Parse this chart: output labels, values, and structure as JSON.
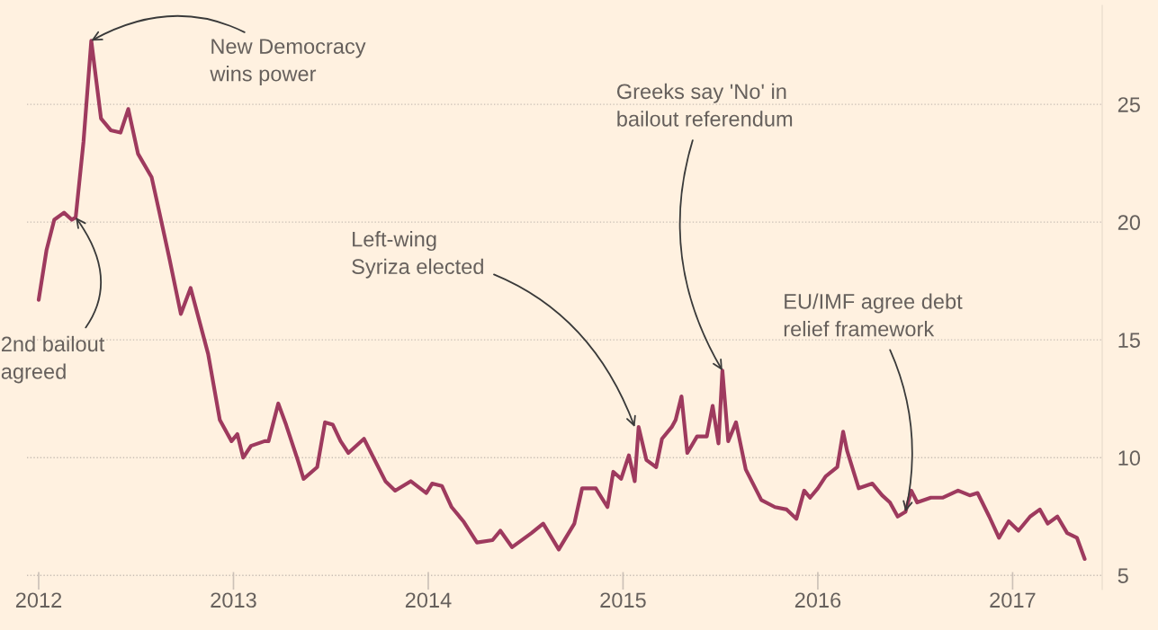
{
  "chart_data": {
    "type": "line",
    "x": [
      2012.0,
      2012.04,
      2012.08,
      2012.13,
      2012.17,
      2012.19,
      2012.23,
      2012.27,
      2012.32,
      2012.37,
      2012.42,
      2012.46,
      2012.51,
      2012.58,
      2012.62,
      2012.67,
      2012.73,
      2012.78,
      2012.87,
      2012.93,
      2012.99,
      2013.02,
      2013.05,
      2013.09,
      2013.16,
      2013.18,
      2013.23,
      2013.27,
      2013.33,
      2013.36,
      2013.43,
      2013.47,
      2013.51,
      2013.55,
      2013.59,
      2013.67,
      2013.78,
      2013.83,
      2013.91,
      2013.99,
      2014.02,
      2014.07,
      2014.12,
      2014.18,
      2014.25,
      2014.33,
      2014.37,
      2014.43,
      2014.53,
      2014.59,
      2014.67,
      2014.75,
      2014.79,
      2014.86,
      2014.92,
      2014.95,
      2014.99,
      2015.03,
      2015.06,
      2015.08,
      2015.12,
      2015.17,
      2015.2,
      2015.25,
      2015.27,
      2015.3,
      2015.33,
      2015.38,
      2015.43,
      2015.46,
      2015.49,
      2015.51,
      2015.54,
      2015.58,
      2015.63,
      2015.71,
      2015.78,
      2015.84,
      2015.89,
      2015.93,
      2015.96,
      2016.0,
      2016.04,
      2016.1,
      2016.13,
      2016.15,
      2016.21,
      2016.28,
      2016.33,
      2016.37,
      2016.41,
      2016.45,
      2016.48,
      2016.51,
      2016.58,
      2016.64,
      2016.72,
      2016.78,
      2016.82,
      2016.88,
      2016.93,
      2016.98,
      2017.03,
      2017.09,
      2017.14,
      2017.18,
      2017.23,
      2017.28,
      2017.33,
      2017.37
    ],
    "series": [
      {
        "color": "#9e3a5e",
        "values": [
          16.7,
          18.8,
          20.1,
          20.4,
          20.1,
          20.2,
          23.4,
          27.7,
          24.4,
          23.9,
          23.8,
          24.8,
          22.9,
          21.9,
          20.4,
          18.5,
          16.1,
          17.2,
          14.4,
          11.6,
          10.7,
          11.0,
          10.0,
          10.5,
          10.7,
          10.7,
          12.3,
          11.4,
          9.9,
          9.1,
          9.6,
          11.5,
          11.4,
          10.7,
          10.2,
          10.8,
          9.0,
          8.6,
          9.0,
          8.5,
          8.9,
          8.8,
          7.9,
          7.3,
          6.4,
          6.5,
          6.9,
          6.2,
          6.8,
          7.2,
          6.1,
          7.2,
          8.7,
          8.7,
          7.9,
          9.4,
          9.1,
          10.1,
          9.0,
          11.3,
          9.9,
          9.6,
          10.8,
          11.3,
          11.6,
          12.6,
          10.2,
          10.9,
          10.9,
          12.2,
          10.6,
          13.7,
          10.7,
          11.5,
          9.5,
          8.2,
          7.9,
          7.8,
          7.4,
          8.6,
          8.3,
          8.7,
          9.2,
          9.6,
          11.1,
          10.3,
          8.7,
          8.9,
          8.4,
          8.1,
          7.5,
          7.7,
          8.6,
          8.1,
          8.3,
          8.3,
          8.6,
          8.4,
          8.5,
          7.5,
          6.6,
          7.3,
          6.9,
          7.5,
          7.8,
          7.2,
          7.5,
          6.8,
          6.6,
          5.7
        ]
      }
    ],
    "xlim": [
      2011.94,
      2017.46
    ],
    "xticks": [
      2012,
      2013,
      2014,
      2015,
      2016,
      2017
    ],
    "ylim": [
      4.4,
      29.2
    ],
    "yticks": [
      5,
      10,
      15,
      20,
      25
    ],
    "grid": "y",
    "line_style": "solid",
    "annotations": [
      {
        "text": "New Democracy\nwins power",
        "x": 2012.27,
        "y": 27.7
      },
      {
        "text": "2nd bailout\nagreed",
        "x": 2012.19,
        "y": 20.2
      },
      {
        "text": "Left-wing\nSyriza elected",
        "x": 2015.06,
        "y": 11.3
      },
      {
        "text": "Greeks say 'No' in\nbailout referendum",
        "x": 2015.51,
        "y": 13.7
      },
      {
        "text": "EU/IMF agree debt\nrelief framework",
        "x": 2016.45,
        "y": 7.7
      }
    ]
  }
}
